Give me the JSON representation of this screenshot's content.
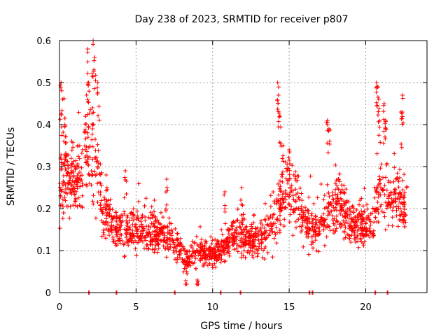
{
  "chart_data": {
    "type": "scatter",
    "title": "Day 238 of 2023, SRMTID for receiver p807",
    "xlabel": "GPS time / hours",
    "ylabel": "SRMTID / TECUs",
    "xlim": [
      0,
      24
    ],
    "ylim": [
      0,
      0.6
    ],
    "x_ticks": [
      0,
      5,
      10,
      15,
      20
    ],
    "x_tick_labels": [
      "0",
      "5",
      "10",
      "15",
      "20"
    ],
    "y_ticks": [
      0,
      0.1,
      0.2,
      0.3,
      0.4,
      0.5,
      0.6
    ],
    "y_tick_labels": [
      "0",
      "0.1",
      "0.2",
      "0.3",
      "0.4",
      "0.5",
      "0.6"
    ],
    "grid": true,
    "marker": "+",
    "color": "#ff0000",
    "zero_markers_x": [
      1.9,
      3.7,
      7.5,
      10.5,
      11.8,
      16.3,
      16.5,
      20.6,
      21.4
    ],
    "trend": [
      [
        0.0,
        0.22
      ],
      [
        0.3,
        0.3
      ],
      [
        0.6,
        0.27
      ],
      [
        1.0,
        0.26
      ],
      [
        1.4,
        0.28
      ],
      [
        1.8,
        0.36
      ],
      [
        2.1,
        0.33
      ],
      [
        2.4,
        0.3
      ],
      [
        2.8,
        0.2
      ],
      [
        3.3,
        0.17
      ],
      [
        4.0,
        0.15
      ],
      [
        5.0,
        0.15
      ],
      [
        6.0,
        0.14
      ],
      [
        7.0,
        0.14
      ],
      [
        7.8,
        0.1
      ],
      [
        8.5,
        0.08
      ],
      [
        9.3,
        0.1
      ],
      [
        10.0,
        0.09
      ],
      [
        10.8,
        0.11
      ],
      [
        11.5,
        0.14
      ],
      [
        12.5,
        0.12
      ],
      [
        13.5,
        0.14
      ],
      [
        14.3,
        0.19
      ],
      [
        14.8,
        0.26
      ],
      [
        15.4,
        0.22
      ],
      [
        16.0,
        0.16
      ],
      [
        17.0,
        0.15
      ],
      [
        17.5,
        0.2
      ],
      [
        18.2,
        0.21
      ],
      [
        19.0,
        0.16
      ],
      [
        20.0,
        0.16
      ],
      [
        20.5,
        0.18
      ],
      [
        21.0,
        0.26
      ],
      [
        21.5,
        0.22
      ],
      [
        22.0,
        0.22
      ],
      [
        22.7,
        0.2
      ]
    ],
    "peaks": [
      [
        0.1,
        0.5
      ],
      [
        0.2,
        0.46
      ],
      [
        0.35,
        0.4
      ],
      [
        0.8,
        0.36
      ],
      [
        1.2,
        0.35
      ],
      [
        1.7,
        0.42
      ],
      [
        1.85,
        0.58
      ],
      [
        1.9,
        0.5
      ],
      [
        2.2,
        0.6
      ],
      [
        2.3,
        0.56
      ],
      [
        2.5,
        0.5
      ],
      [
        2.15,
        0.44
      ],
      [
        3.1,
        0.25
      ],
      [
        4.3,
        0.29
      ],
      [
        6.2,
        0.22
      ],
      [
        7.0,
        0.27
      ],
      [
        8.3,
        0.05
      ],
      [
        9.0,
        0.03
      ],
      [
        10.8,
        0.24
      ],
      [
        11.9,
        0.25
      ],
      [
        14.25,
        0.5
      ],
      [
        14.3,
        0.47
      ],
      [
        14.4,
        0.42
      ],
      [
        14.6,
        0.35
      ],
      [
        15.0,
        0.34
      ],
      [
        17.5,
        0.41
      ],
      [
        17.6,
        0.39
      ],
      [
        18.2,
        0.27
      ],
      [
        20.7,
        0.5
      ],
      [
        20.8,
        0.49
      ],
      [
        20.85,
        0.46
      ],
      [
        21.2,
        0.45
      ],
      [
        21.3,
        0.41
      ],
      [
        22.4,
        0.47
      ],
      [
        22.3,
        0.43
      ]
    ],
    "point_count": 2000
  }
}
